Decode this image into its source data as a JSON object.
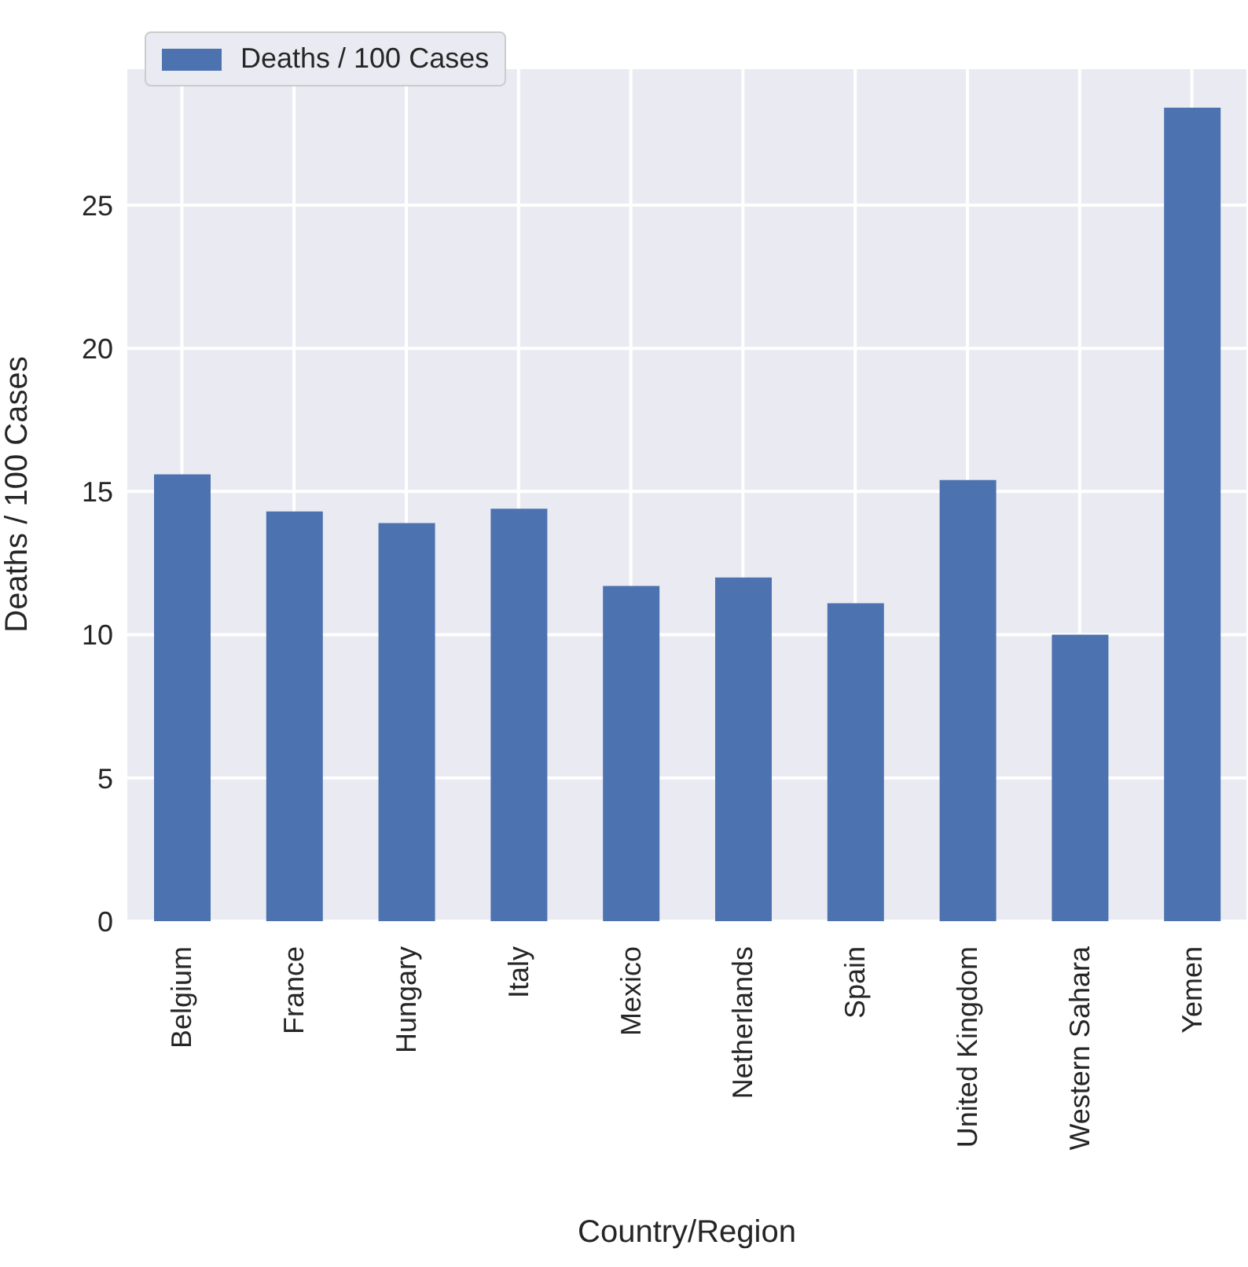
{
  "chart_data": {
    "type": "bar",
    "xlabel": "Country/Region",
    "ylabel": "Deaths / 100 Cases",
    "categories": [
      "Belgium",
      "France",
      "Hungary",
      "Italy",
      "Mexico",
      "Netherlands",
      "Spain",
      "United Kingdom",
      "Western Sahara",
      "Yemen"
    ],
    "series": [
      {
        "name": "Deaths / 100 Cases",
        "color": "#4c72b0",
        "values": [
          15.6,
          14.3,
          13.9,
          14.4,
          11.7,
          12.0,
          11.1,
          15.4,
          10.0,
          28.4
        ]
      }
    ],
    "ylim": [
      0,
      29.8
    ],
    "yticks": [
      0,
      5,
      10,
      15,
      20,
      25
    ],
    "grid": true,
    "legend": "top left"
  }
}
